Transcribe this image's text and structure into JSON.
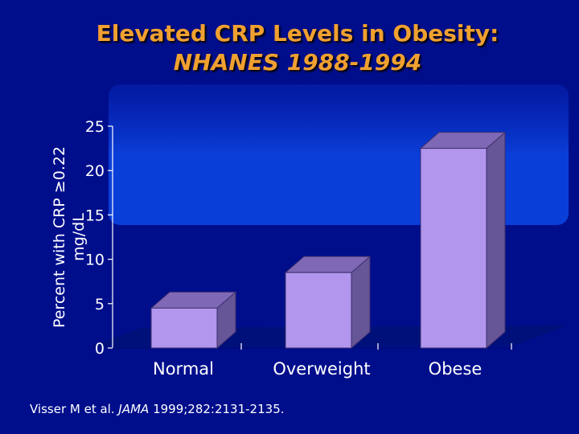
{
  "colors": {
    "background": "#000e8c",
    "panel": "#0a3ed8",
    "floor": "#00107a",
    "bar_front": "#b296ee",
    "bar_side": "#665597",
    "bar_top": "#7f69b6",
    "title": "#f0a030",
    "text": "#ffffff"
  },
  "citation": {
    "authors": "Visser M et al.",
    "journal": "JAMA",
    "details": "1999;282:2131-2135."
  },
  "chart_data": {
    "type": "bar",
    "title": "Elevated CRP Levels in Obesity:",
    "subtitle": "NHANES 1988-1994",
    "ylabel_line1": "Percent with CRP ≥0.22",
    "ylabel_line2": "mg/dL",
    "xlabel": "",
    "categories": [
      "Normal",
      "Overweight",
      "Obese"
    ],
    "values": [
      4.5,
      8.5,
      22.5
    ],
    "ylim": [
      0,
      25
    ],
    "yticks": [
      0,
      5,
      10,
      15,
      20,
      25
    ],
    "grid": false,
    "style": "3d"
  }
}
